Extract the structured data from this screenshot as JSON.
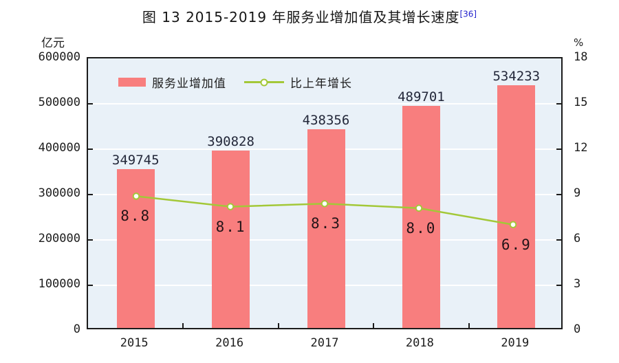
{
  "title": {
    "text": "图 13  2015-2019 年服务业增加值及其增长速度",
    "footnote_ref": "[36]"
  },
  "chart_data": {
    "type": "bar",
    "subtype": "bar+line combo, dual axis",
    "categories": [
      "2015",
      "2016",
      "2017",
      "2018",
      "2019"
    ],
    "series": [
      {
        "name": "服务业增加值",
        "type": "bar",
        "axis": "left",
        "values": [
          349745,
          390828,
          438356,
          489701,
          534233
        ],
        "value_labels": [
          "349745",
          "390828",
          "438356",
          "489701",
          "534233"
        ],
        "color": "#F87E7E"
      },
      {
        "name": "比上年增长",
        "type": "line",
        "axis": "right",
        "values": [
          8.8,
          8.1,
          8.3,
          8.0,
          6.9
        ],
        "value_labels": [
          "8.8",
          "8.1",
          "8.3",
          "8.0",
          "6.9"
        ],
        "color": "#A3C838",
        "marker": "open-circle-white-fill"
      }
    ],
    "left_axis": {
      "unit_label": "亿元",
      "min": 0,
      "max": 600000,
      "tick_step": 100000,
      "tick_labels": [
        "600000",
        "500000",
        "400000",
        "300000",
        "200000",
        "100000",
        "0"
      ]
    },
    "right_axis": {
      "unit_label": "%",
      "min": 0,
      "max": 18,
      "tick_step": 3,
      "tick_labels": [
        "18",
        "15",
        "12",
        "9",
        "6",
        "3",
        "0"
      ]
    },
    "legend_position": "top-inside",
    "grid": "horizontal-white-lines",
    "plot_background": "#E9F1F8",
    "border_color": "#1b1b1b",
    "footnote_ref_color": "#2222cc"
  }
}
